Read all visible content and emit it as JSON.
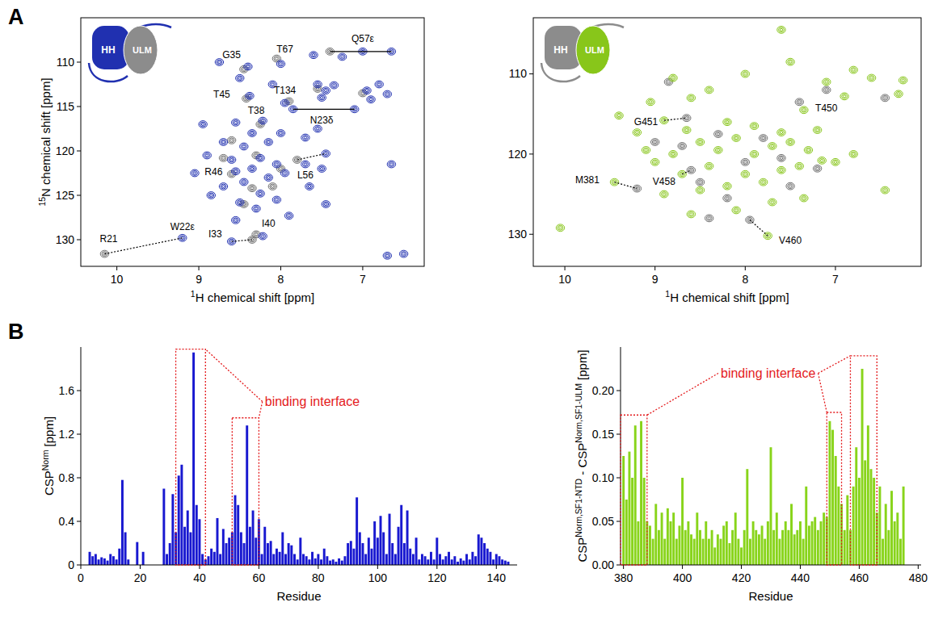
{
  "panel_labels": [
    "A",
    "B"
  ],
  "chart_data": [
    {
      "type": "scatter",
      "marker": "contour",
      "grid": false,
      "x_label": [
        {
          "text": "1",
          "sup": true
        },
        {
          "text": "H chemical shift [ppm]"
        }
      ],
      "y_label": [
        {
          "text": "15",
          "sup": true
        },
        {
          "text": "N chemical shift [ppm]"
        }
      ],
      "xlim": [
        10.44,
        6.25
      ],
      "ylim": [
        133,
        105
      ],
      "xticks": [
        10,
        9,
        8,
        7
      ],
      "yticks": [
        110,
        115,
        120,
        125,
        130
      ],
      "inset": {
        "labels": [
          "HH",
          "ULM"
        ],
        "colors": [
          "#2030b0",
          "#8c8c8c"
        ]
      },
      "series": [
        {
          "color": "#6e6e6e",
          "x": [
            10.15,
            8.35,
            8.3,
            8.45,
            8.05,
            8.42,
            8.25,
            7.9,
            7.4,
            8.6,
            7.8,
            8.3,
            8.6,
            8.1,
            8.45,
            7.55,
            7.0,
            8.7,
            8.0,
            8.35
          ],
          "values": [
            131.6,
            130.0,
            129.4,
            110.8,
            109.6,
            114.1,
            117.0,
            114.4,
            108.8,
            122.6,
            121.0,
            120.5,
            118.8,
            124.0,
            126.0,
            113.0,
            113.5,
            120.8,
            122.0,
            124.2
          ]
        },
        {
          "color": "#2030b0",
          "x": [
            9.2,
            8.6,
            8.22,
            8.4,
            8.0,
            8.38,
            8.22,
            7.95,
            7.0,
            6.65,
            7.85,
            7.1,
            8.55,
            7.45,
            7.55,
            7.45,
            7.5,
            7.35,
            6.8,
            6.95,
            6.7,
            6.9,
            7.25,
            7.6,
            8.75,
            8.5,
            8.1,
            8.55,
            8.35,
            8.45,
            8.15,
            8.7,
            8.9,
            8.25,
            8.05,
            8.6,
            8.35,
            8.15,
            8.45,
            8.7,
            8.25,
            7.95,
            8.05,
            8.5,
            8.85,
            8.3,
            7.65,
            7.45,
            8.0,
            7.7,
            7.55,
            8.95,
            9.05,
            7.7,
            7.5,
            6.65,
            6.7,
            6.5,
            7.9,
            8.55
          ],
          "values": [
            129.8,
            130.2,
            129.6,
            110.5,
            110.2,
            113.8,
            116.6,
            114.6,
            108.8,
            108.8,
            115.3,
            115.3,
            122.3,
            120.3,
            112.5,
            113.2,
            114.0,
            112.6,
            112.5,
            113.2,
            113.6,
            114.2,
            109.4,
            109.2,
            110.0,
            111.8,
            112.5,
            116.8,
            118.0,
            119.5,
            119.0,
            119.0,
            120.5,
            120.8,
            121.5,
            121.0,
            122.0,
            123.0,
            123.5,
            124.0,
            124.8,
            122.5,
            125.5,
            125.8,
            125.0,
            126.5,
            124.0,
            126.0,
            118.0,
            118.5,
            117.5,
            117.0,
            122.5,
            121.5,
            122.0,
            121.5,
            131.8,
            131.6,
            127.3,
            127.8
          ]
        }
      ],
      "annotations": [
        {
          "text": "R21",
          "x": 10.1,
          "y": 129.9
        },
        {
          "text": "W22ε",
          "x": 9.2,
          "y": 128.5
        },
        {
          "text": "I33",
          "x": 8.8,
          "y": 129.3
        },
        {
          "text": "I40",
          "x": 8.15,
          "y": 128.2
        },
        {
          "text": "G35",
          "x": 8.6,
          "y": 109.2
        },
        {
          "text": "T67",
          "x": 7.95,
          "y": 108.5
        },
        {
          "text": "Q57ε",
          "x": 7.0,
          "y": 107.3
        },
        {
          "text": "T45",
          "x": 8.72,
          "y": 113.6
        },
        {
          "text": "T38",
          "x": 8.3,
          "y": 115.4
        },
        {
          "text": "T134",
          "x": 7.95,
          "y": 113.2
        },
        {
          "text": "N23δ",
          "x": 7.5,
          "y": 116.5
        },
        {
          "text": "R46",
          "x": 8.82,
          "y": 122.3
        },
        {
          "text": "L56",
          "x": 7.7,
          "y": 122.7
        }
      ],
      "connectors": [
        {
          "from": [
            10.15,
            131.6
          ],
          "to": [
            9.2,
            129.8
          ],
          "line_style": "dotted"
        },
        {
          "from": [
            8.6,
            130.2
          ],
          "to": [
            8.35,
            130.0
          ],
          "line_style": "dotted"
        },
        {
          "from": [
            7.4,
            108.8
          ],
          "to": [
            6.65,
            108.8
          ],
          "line_style": "solid"
        },
        {
          "from": [
            7.85,
            115.3
          ],
          "to": [
            7.1,
            115.3
          ],
          "line_style": "solid"
        },
        {
          "from": [
            7.8,
            121.0
          ],
          "to": [
            7.45,
            120.3
          ],
          "line_style": "dotted"
        }
      ]
    },
    {
      "type": "scatter",
      "marker": "contour",
      "grid": false,
      "x_label": [
        {
          "text": "1",
          "sup": true
        },
        {
          "text": "H chemical shift [ppm]"
        }
      ],
      "xlim": [
        10.35,
        6.05
      ],
      "ylim": [
        134,
        103
      ],
      "xticks": [
        10,
        9,
        8,
        7
      ],
      "yticks": [
        110,
        120,
        130
      ],
      "inset": {
        "labels": [
          "HH",
          "ULM"
        ],
        "colors": [
          "#8c8c8c",
          "#88c61a"
        ]
      },
      "series": [
        {
          "color": "#6e6e6e",
          "x": [
            9.2,
            8.65,
            8.6,
            7.95,
            7.4,
            8.85,
            8.3,
            8.0,
            7.6,
            8.5,
            7.8,
            7.1,
            6.45,
            8.2,
            7.5,
            8.7,
            9.0,
            7.2,
            8.4
          ],
          "values": [
            124.3,
            115.5,
            122.0,
            128.2,
            113.5,
            111.0,
            117.5,
            121.0,
            120.5,
            123.5,
            118.0,
            112.0,
            113.0,
            125.5,
            124.0,
            119.0,
            118.5,
            121.8,
            128.0
          ]
        },
        {
          "color": "#88c61a",
          "x": [
            10.05,
            9.45,
            8.9,
            8.7,
            7.75,
            7.35,
            9.4,
            9.2,
            9.05,
            8.8,
            8.6,
            8.4,
            8.2,
            8.0,
            7.6,
            7.5,
            7.1,
            6.9,
            6.8,
            6.6,
            6.3,
            6.25,
            8.5,
            8.3,
            8.1,
            7.9,
            7.7,
            7.5,
            7.3,
            7.15,
            8.8,
            9.0,
            8.4,
            8.0,
            7.8,
            7.6,
            8.2,
            8.5,
            8.9,
            7.4,
            7.0,
            6.8,
            7.7,
            8.1,
            8.6,
            7.35,
            7.9,
            7.6,
            7.2,
            8.65,
            9.1,
            6.45
          ],
          "values": [
            129.2,
            123.5,
            115.8,
            122.5,
            130.2,
            114.5,
            115.2,
            117.3,
            113.5,
            110.5,
            113.0,
            112.0,
            116.0,
            110.0,
            104.5,
            108.5,
            111.0,
            112.8,
            109.5,
            110.5,
            112.5,
            110.8,
            118.5,
            119.5,
            118.0,
            120.0,
            119.0,
            118.5,
            119.5,
            120.8,
            120.0,
            121.0,
            121.5,
            122.5,
            123.5,
            122.0,
            124.0,
            124.5,
            125.0,
            121.5,
            121.0,
            120.0,
            126.0,
            127.0,
            127.5,
            125.5,
            116.5,
            117.3,
            117.0,
            117.0,
            119.5,
            124.5
          ]
        }
      ],
      "annotations": [
        {
          "text": "M381",
          "x": 9.75,
          "y": 123.2
        },
        {
          "text": "G451",
          "x": 9.1,
          "y": 116.0
        },
        {
          "text": "V458",
          "x": 8.9,
          "y": 123.4
        },
        {
          "text": "V460",
          "x": 7.5,
          "y": 130.8
        },
        {
          "text": "T450",
          "x": 7.1,
          "y": 114.3
        }
      ],
      "connectors": [
        {
          "from": [
            9.45,
            123.5
          ],
          "to": [
            9.2,
            124.3
          ],
          "line_style": "dotted"
        },
        {
          "from": [
            8.9,
            115.8
          ],
          "to": [
            8.65,
            115.5
          ],
          "line_style": "dotted"
        },
        {
          "from": [
            8.7,
            122.5
          ],
          "to": [
            8.6,
            122.0
          ],
          "line_style": "dotted"
        },
        {
          "from": [
            7.95,
            128.2
          ],
          "to": [
            7.75,
            130.2
          ],
          "line_style": "dotted"
        }
      ]
    },
    {
      "type": "bar",
      "grid": false,
      "color": "#1818d0",
      "x_label": "Residue",
      "y_label": [
        {
          "text": "CSP"
        },
        {
          "text": "Norm",
          "sup": true
        },
        {
          "text": " [ppm]"
        }
      ],
      "xlim": [
        0,
        147
      ],
      "ylim": [
        0,
        2
      ],
      "xticks": [
        0,
        20,
        40,
        60,
        80,
        100,
        120,
        140
      ],
      "yticks": [
        0,
        0.4,
        0.8,
        1.2,
        1.6
      ],
      "x": [
        3,
        4,
        5,
        6,
        7,
        8,
        9,
        10,
        11,
        12,
        13,
        14,
        15,
        16,
        19,
        21,
        28,
        29,
        30,
        31,
        32,
        33,
        34,
        35,
        36,
        37,
        38,
        39,
        40,
        41,
        42,
        43,
        44,
        45,
        46,
        47,
        48,
        49,
        50,
        51,
        52,
        53,
        54,
        55,
        56,
        57,
        58,
        59,
        60,
        61,
        62,
        63,
        64,
        65,
        66,
        67,
        68,
        69,
        70,
        71,
        72,
        73,
        74,
        75,
        76,
        77,
        78,
        79,
        80,
        81,
        82,
        83,
        84,
        85,
        86,
        87,
        88,
        89,
        90,
        91,
        92,
        93,
        94,
        95,
        96,
        97,
        98,
        99,
        100,
        101,
        102,
        103,
        104,
        105,
        106,
        107,
        108,
        109,
        110,
        111,
        112,
        113,
        114,
        115,
        116,
        117,
        118,
        119,
        120,
        121,
        122,
        123,
        124,
        125,
        126,
        127,
        128,
        129,
        130,
        131,
        132,
        133,
        134,
        135,
        136,
        137,
        138,
        139,
        140,
        141,
        142,
        143,
        144
      ],
      "values": [
        0.12,
        0.08,
        0.1,
        0.05,
        0.07,
        0.06,
        0.04,
        0.1,
        0.08,
        0.05,
        0.15,
        0.78,
        0.3,
        0.05,
        0.21,
        0.12,
        0.7,
        0.1,
        0.2,
        0.65,
        0.3,
        0.82,
        0.92,
        0.35,
        0.5,
        0.3,
        1.95,
        0.55,
        0.42,
        0.1,
        0.05,
        0.08,
        0.15,
        0.12,
        0.43,
        0.1,
        0.33,
        0.2,
        0.25,
        0.3,
        0.64,
        0.55,
        0.3,
        0.2,
        1.28,
        0.35,
        0.5,
        0.25,
        0.42,
        0.1,
        0.35,
        0.2,
        0.22,
        0.1,
        0.15,
        0.12,
        0.3,
        0.1,
        0.2,
        0.18,
        0.1,
        0.05,
        0.25,
        0.1,
        0.08,
        0.05,
        0.12,
        0.06,
        0.1,
        0.05,
        0.15,
        0.08,
        0.04,
        0.05,
        0.03,
        0.06,
        0.04,
        0.08,
        0.2,
        0.22,
        0.15,
        0.62,
        0.3,
        0.2,
        0.1,
        0.25,
        0.15,
        0.4,
        0.25,
        0.45,
        0.3,
        0.1,
        0.47,
        0.2,
        0.1,
        0.35,
        0.55,
        0.2,
        0.5,
        0.15,
        0.1,
        0.25,
        0.05,
        0.1,
        0.08,
        0.05,
        0.12,
        0.05,
        0.25,
        0.1,
        0.05,
        0.08,
        0.12,
        0.05,
        0.08,
        0.03,
        0.06,
        0.04,
        0.1,
        0.05,
        0.12,
        0.08,
        0.28,
        0.25,
        0.2,
        0.15,
        0.12,
        0.05,
        0.1,
        0.08,
        0.05,
        0.04,
        0.03
      ],
      "regions": [
        {
          "x": [
            32,
            42
          ],
          "y": [
            0,
            1.98
          ]
        },
        {
          "x": [
            51,
            60
          ],
          "y": [
            0,
            1.35
          ]
        }
      ],
      "annotations": [
        {
          "text": "binding interface",
          "x": 62,
          "y": 1.5,
          "color": "#e41a1c",
          "line_style": "dotted"
        }
      ]
    },
    {
      "type": "bar",
      "grid": false,
      "color": "#88d41a",
      "x_label": "Residue",
      "y_label": [
        {
          "text": "CSP"
        },
        {
          "text": "Norm,SF1-NTD",
          "sup": true
        },
        {
          "text": " - CSP"
        },
        {
          "text": "Norm,SF1-ULM",
          "sup": true
        },
        {
          "text": " [ppm]"
        }
      ],
      "xlim": [
        379,
        481
      ],
      "ylim": [
        0,
        0.25
      ],
      "xticks": [
        380,
        400,
        420,
        440,
        460,
        480
      ],
      "yticks": [
        {
          "value": 0,
          "label": "0.00"
        },
        0.05,
        {
          "value": 0.1,
          "label": "0.10"
        },
        0.15,
        {
          "value": 0.2,
          "label": "0.20"
        }
      ],
      "x": [
        380,
        381,
        382,
        383,
        384,
        385,
        386,
        387,
        388,
        389,
        390,
        391,
        392,
        393,
        394,
        395,
        396,
        397,
        398,
        399,
        400,
        401,
        402,
        403,
        404,
        405,
        406,
        407,
        408,
        409,
        410,
        411,
        412,
        413,
        414,
        415,
        416,
        417,
        418,
        419,
        420,
        421,
        422,
        423,
        424,
        425,
        426,
        427,
        428,
        429,
        430,
        431,
        432,
        433,
        434,
        435,
        436,
        437,
        438,
        439,
        440,
        441,
        442,
        443,
        444,
        445,
        446,
        447,
        448,
        449,
        450,
        451,
        452,
        453,
        454,
        455,
        456,
        457,
        458,
        459,
        460,
        461,
        462,
        463,
        464,
        465,
        466,
        467,
        468,
        469,
        470,
        471,
        472,
        473,
        474,
        475
      ],
      "values": [
        0.125,
        0.075,
        0.13,
        0.1,
        0.16,
        0.05,
        0.165,
        0.1,
        0.05,
        0.045,
        0.03,
        0.07,
        0.04,
        0.06,
        0.03,
        0.065,
        0.05,
        0.06,
        0.03,
        0.045,
        0.1,
        0.04,
        0.05,
        0.035,
        0.03,
        0.06,
        0.04,
        0.03,
        0.05,
        0.03,
        0.04,
        0.02,
        0.035,
        0.03,
        0.045,
        0.05,
        0.025,
        0.04,
        0.06,
        0.03,
        0.02,
        0.04,
        0.11,
        0.03,
        0.05,
        0.04,
        0.035,
        0.045,
        0.03,
        0.05,
        0.135,
        0.04,
        0.06,
        0.03,
        0.04,
        0.05,
        0.04,
        0.07,
        0.035,
        0.04,
        0.05,
        0.03,
        0.09,
        0.045,
        0.05,
        0.055,
        0.04,
        0.05,
        0.06,
        0.055,
        0.165,
        0.155,
        0.125,
        0.09,
        0.07,
        0.04,
        0.08,
        0.04,
        0.09,
        0.135,
        0.1,
        0.225,
        0.12,
        0.16,
        0.11,
        0.1,
        0.06,
        0.09,
        0.03,
        0.07,
        0.04,
        0.085,
        0.05,
        0.06,
        0.03,
        0.09
      ],
      "regions": [
        {
          "x": [
            379,
            388
          ],
          "y": [
            0,
            0.172
          ]
        },
        {
          "x": [
            449,
            454
          ],
          "y": [
            0,
            0.175
          ]
        },
        {
          "x": [
            457,
            466
          ],
          "y": [
            0,
            0.24
          ]
        }
      ],
      "annotations": [
        {
          "text": "binding interface",
          "x": 413,
          "y": 0.22,
          "color": "#e41a1c",
          "line_style": "dotted"
        }
      ]
    }
  ]
}
